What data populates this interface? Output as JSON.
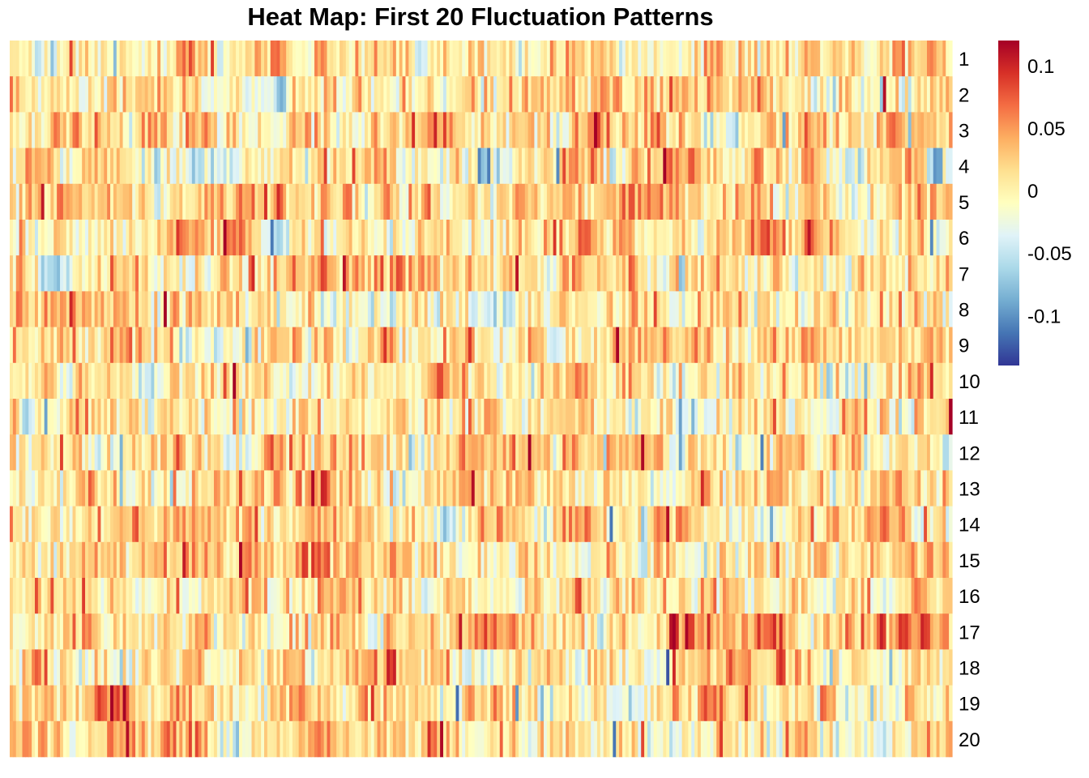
{
  "chart_data": {
    "type": "heatmap",
    "title": "Heat Map: First 20 Fluctuation Patterns",
    "rows": [
      "1",
      "2",
      "3",
      "4",
      "5",
      "6",
      "7",
      "8",
      "9",
      "10",
      "11",
      "12",
      "13",
      "14",
      "15",
      "16",
      "17",
      "18",
      "19",
      "20"
    ],
    "columns_count": 300,
    "value_range": [
      -0.14,
      0.12
    ],
    "colorbar": {
      "ticks": [
        {
          "value": 0.1,
          "label": "0.1"
        },
        {
          "value": 0.05,
          "label": "0.05"
        },
        {
          "value": 0,
          "label": "0"
        },
        {
          "value": -0.05,
          "label": "-0.05"
        },
        {
          "value": -0.1,
          "label": "-0.1"
        }
      ],
      "colors_low_to_high": [
        "#313695",
        "#4575b4",
        "#74add1",
        "#abd9e9",
        "#e0f3f8",
        "#ffffbf",
        "#fee090",
        "#fdae61",
        "#f46d43",
        "#d73027",
        "#a50026"
      ],
      "placement": "right"
    },
    "grid": false
  }
}
